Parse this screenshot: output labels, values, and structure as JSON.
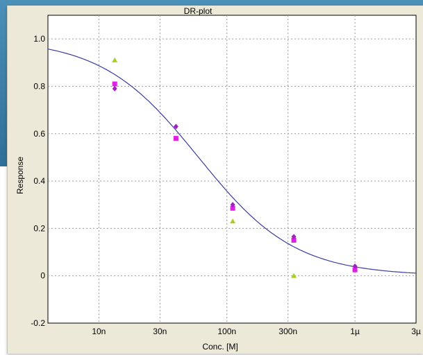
{
  "colors": {
    "frame_top": "#4a90b8",
    "frame_bottom": "#2e6f9a",
    "window_bg": "#ece9d8",
    "plot_bg": "#ffffff",
    "grid": "#9a9a9a",
    "curve": "#3a3aa0",
    "triangle": "#a6d020",
    "square": "#e020e0",
    "diamond": "#a020c0"
  },
  "chart_data": {
    "type": "scatter",
    "title": "DR-plot",
    "xlabel": "Conc. [M]",
    "ylabel": "Response",
    "x_scale": "log",
    "xlim": [
      4e-09,
      3e-06
    ],
    "ylim": [
      -0.2,
      1.1
    ],
    "x_ticks": [
      {
        "value": 1e-08,
        "label": "10n"
      },
      {
        "value": 3e-08,
        "label": "30n"
      },
      {
        "value": 1e-07,
        "label": "100n"
      },
      {
        "value": 3e-07,
        "label": "300n"
      },
      {
        "value": 1e-06,
        "label": "1µ"
      },
      {
        "value": 3e-06,
        "label": "3µ"
      }
    ],
    "y_ticks": [
      {
        "value": -0.2,
        "label": "-0.2"
      },
      {
        "value": 0,
        "label": "0"
      },
      {
        "value": 0.2,
        "label": "0.2"
      },
      {
        "value": 0.4,
        "label": "0.4"
      },
      {
        "value": 0.6,
        "label": "0.6"
      },
      {
        "value": 0.8,
        "label": "0.8"
      },
      {
        "value": 1.0,
        "label": "1.0"
      }
    ],
    "grid": true,
    "fit_curve": {
      "model": "sigmoid",
      "top": 1.0,
      "bottom": 0.0,
      "ec50": 6e-08,
      "hill": 1.15
    },
    "series": [
      {
        "marker": "triangle",
        "x": [
          1.33e-08,
          4e-08,
          1.11e-07,
          3.33e-07
        ],
        "y": [
          0.91,
          0.58,
          0.23,
          0.0
        ]
      },
      {
        "marker": "square",
        "x": [
          1.33e-08,
          4e-08,
          1.11e-07,
          3.33e-07,
          1e-06
        ],
        "y": [
          0.81,
          0.58,
          0.285,
          0.15,
          0.025
        ]
      },
      {
        "marker": "diamond",
        "x": [
          1.33e-08,
          4e-08,
          1.11e-07,
          3.33e-07,
          1e-06
        ],
        "y": [
          0.79,
          0.63,
          0.3,
          0.165,
          0.04
        ]
      }
    ]
  }
}
